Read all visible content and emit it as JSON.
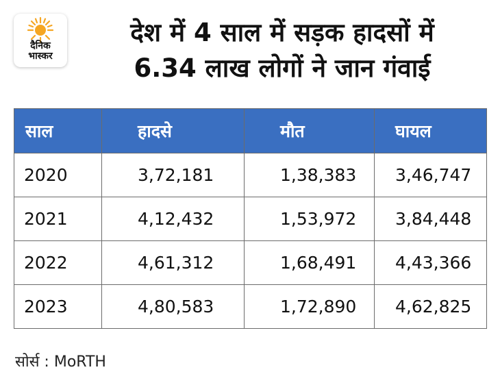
{
  "logo": {
    "line1": "दैनिक",
    "line2": "भास्कर",
    "sun_color": "#f5a623"
  },
  "title": {
    "line1": "देश में 4 साल में सड़क हादसों में",
    "line2": "6.34 लाख लोगों ने जान गंवाई"
  },
  "table": {
    "headers": [
      "साल",
      "हादसे",
      "मौत",
      "घायल"
    ],
    "rows": [
      [
        "2020",
        "3,72,181",
        "1,38,383",
        "3,46,747"
      ],
      [
        "2021",
        "4,12,432",
        "1,53,972",
        "3,84,448"
      ],
      [
        "2022",
        "4,61,312",
        "1,68,491",
        "4,43,366"
      ],
      [
        "2023",
        "4,80,583",
        "1,72,890",
        "4,62,825"
      ]
    ],
    "header_color": "#3a6fc1"
  },
  "source": "सोर्स : MoRTH"
}
